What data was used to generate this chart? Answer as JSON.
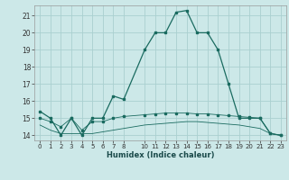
{
  "xlabel": "Humidex (Indice chaleur)",
  "bg_color": "#cce8e8",
  "grid_color": "#aad0d0",
  "line_color": "#1a6b60",
  "xlim": [
    -0.5,
    23.5
  ],
  "ylim": [
    13.7,
    21.6
  ],
  "xticks": [
    0,
    1,
    2,
    3,
    4,
    5,
    6,
    7,
    8,
    10,
    11,
    12,
    13,
    14,
    15,
    16,
    17,
    18,
    19,
    20,
    21,
    22,
    23
  ],
  "yticks": [
    14,
    15,
    16,
    17,
    18,
    19,
    20,
    21
  ],
  "series1_x": [
    0,
    1,
    2,
    3,
    4,
    5,
    6,
    7,
    8,
    10,
    11,
    12,
    13,
    14,
    15,
    16,
    17,
    18,
    19,
    20,
    21,
    22,
    23
  ],
  "series1_y": [
    15.4,
    15.0,
    14.0,
    15.0,
    14.0,
    15.0,
    15.0,
    16.3,
    16.1,
    19.0,
    20.0,
    20.0,
    21.2,
    21.3,
    20.0,
    20.0,
    19.0,
    17.0,
    15.0,
    15.0,
    15.0,
    14.1,
    14.0
  ],
  "series2_x": [
    0,
    1,
    2,
    3,
    4,
    5,
    6,
    7,
    8,
    10,
    11,
    12,
    13,
    14,
    15,
    16,
    17,
    18,
    19,
    20,
    21,
    22,
    23
  ],
  "series2_y": [
    14.6,
    14.3,
    14.1,
    14.1,
    14.1,
    14.1,
    14.2,
    14.3,
    14.4,
    14.6,
    14.65,
    14.7,
    14.75,
    14.8,
    14.8,
    14.75,
    14.7,
    14.65,
    14.6,
    14.5,
    14.4,
    14.1,
    14.0
  ],
  "series3_x": [
    0,
    1,
    2,
    3,
    4,
    5,
    6,
    7,
    8,
    10,
    11,
    12,
    13,
    14,
    15,
    16,
    17,
    18,
    19,
    20,
    21,
    22,
    23
  ],
  "series3_y": [
    15.0,
    14.8,
    14.5,
    15.0,
    14.3,
    14.8,
    14.8,
    15.0,
    15.1,
    15.2,
    15.25,
    15.3,
    15.3,
    15.3,
    15.25,
    15.25,
    15.2,
    15.15,
    15.1,
    15.05,
    15.0,
    14.1,
    14.0
  ]
}
